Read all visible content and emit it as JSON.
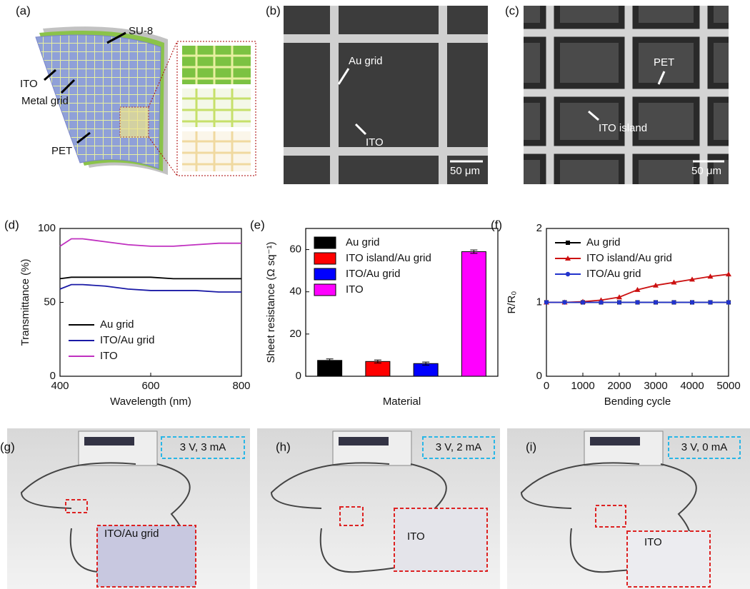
{
  "figure": {
    "panels": [
      {
        "label": "(a)",
        "texts": [
          "SU-8",
          "ITO",
          "Metal grid",
          "PET"
        ]
      },
      {
        "label": "(b)",
        "texts": [
          "Au grid",
          "ITO",
          "50 μm"
        ]
      },
      {
        "label": "(c)",
        "texts": [
          "PET",
          "ITO island",
          "50 μm"
        ]
      },
      {
        "label": "(g)",
        "texts": [
          "3 V, 3 mA",
          "ITO/Au grid"
        ]
      },
      {
        "label": "(h)",
        "texts": [
          "3 V, 2 mA",
          "ITO"
        ]
      },
      {
        "label": "(i)",
        "texts": [
          "3 V, 0 mA",
          "ITO"
        ]
      }
    ]
  },
  "chart_data": [
    {
      "type": "line",
      "label": "(d)",
      "xlabel": "Wavelength (nm)",
      "ylabel": "Transmittance (%)",
      "x": [
        400,
        425,
        450,
        500,
        550,
        600,
        650,
        700,
        750,
        800
      ],
      "series": [
        {
          "name": "Au grid",
          "color": "#000000",
          "values": [
            66,
            67,
            67,
            67,
            67,
            67,
            66,
            66,
            66,
            66
          ]
        },
        {
          "name": "ITO/Au grid",
          "color": "#1a1aa6",
          "values": [
            59,
            62,
            62,
            61,
            59,
            58,
            58,
            58,
            57,
            57
          ]
        },
        {
          "name": "ITO",
          "color": "#c030c0",
          "values": [
            88,
            93,
            93,
            91,
            89,
            88,
            88,
            89,
            90,
            90
          ]
        }
      ],
      "xlim": [
        400,
        800
      ],
      "xticks": [
        400,
        600,
        800
      ],
      "ylim": [
        0,
        100
      ],
      "yticks": [
        0,
        50,
        100
      ],
      "legend": "lower left"
    },
    {
      "type": "bar",
      "label": "(e)",
      "xlabel": "Material",
      "ylabel": "Sheet resistance (Ω sq⁻¹)",
      "categories": [
        null
      ],
      "series": [
        {
          "name": "Au grid",
          "color": "#000000",
          "values": [
            7.5
          ],
          "errors": [
            0.7
          ]
        },
        {
          "name": "ITO island/Au grid",
          "color": "#ff0000",
          "values": [
            7
          ],
          "errors": [
            0.7
          ]
        },
        {
          "name": "ITO/Au grid",
          "color": "#0000ff",
          "values": [
            6
          ],
          "errors": [
            0.7
          ]
        },
        {
          "name": "ITO",
          "color": "#ff00ff",
          "values": [
            59
          ],
          "errors": [
            0.8
          ]
        }
      ],
      "ylim": [
        0,
        70
      ],
      "yticks": [
        0,
        20,
        40,
        60
      ],
      "legend": "upper left"
    },
    {
      "type": "line",
      "label": "(f)",
      "xlabel": "Bending cycle",
      "ylabel": "R/R₀",
      "x": [
        0,
        500,
        1000,
        1500,
        2000,
        2500,
        3000,
        3500,
        4000,
        4500,
        5000
      ],
      "series": [
        {
          "name": "Au grid",
          "color": "#000000",
          "marker": "square",
          "values": [
            1,
            1,
            1,
            1,
            1,
            1,
            1,
            1,
            1,
            1,
            1
          ]
        },
        {
          "name": "ITO island/Au grid",
          "color": "#cc1111",
          "marker": "triangle",
          "values": [
            1,
            1,
            1.01,
            1.03,
            1.07,
            1.17,
            1.23,
            1.27,
            1.31,
            1.35,
            1.38
          ]
        },
        {
          "name": "ITO/Au grid",
          "color": "#2233cc",
          "marker": "circle",
          "values": [
            1,
            1,
            1,
            1,
            1,
            1,
            1,
            1,
            1,
            1,
            1
          ]
        }
      ],
      "xlim": [
        0,
        5000
      ],
      "xticks": [
        0,
        1000,
        2000,
        3000,
        4000,
        5000
      ],
      "ylim": [
        0,
        2
      ],
      "yticks": [
        0,
        1,
        2
      ],
      "legend": "upper left"
    }
  ]
}
